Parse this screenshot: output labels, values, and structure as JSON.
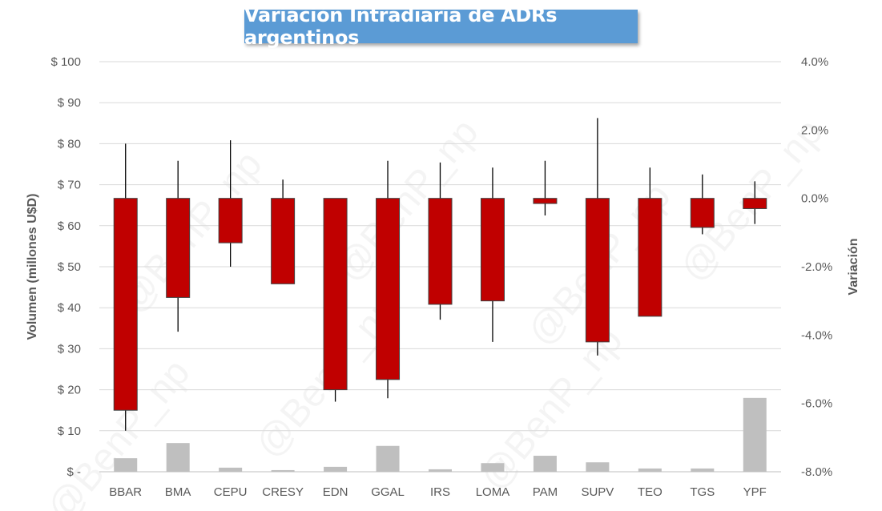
{
  "chart_data": {
    "type": "candlestick_with_volume_bars",
    "title": "Variación Intradiaria de ADRs argentinos",
    "ylabel_left": "Volumen (millones U$D)",
    "ylabel_right": "Variación",
    "ylim_left": [
      0,
      100
    ],
    "ylim_right": [
      -8.0,
      4.0
    ],
    "left_ticks": [
      0,
      10,
      20,
      30,
      40,
      50,
      60,
      70,
      80,
      90,
      100
    ],
    "left_tick_labels": [
      "$ -",
      "$ 10",
      "$ 20",
      "$ 30",
      "$ 40",
      "$ 50",
      "$ 60",
      "$ 70",
      "$ 80",
      "$ 90",
      "$ 100"
    ],
    "right_ticks": [
      -8,
      -6,
      -4,
      -2,
      0,
      2,
      4
    ],
    "right_tick_labels": [
      "-8.0%",
      "-6.0%",
      "-4.0%",
      "-2.0%",
      "0.0%",
      "2.0%",
      "4.0%"
    ],
    "categories": [
      "BBAR",
      "BMA",
      "CEPU",
      "CRESY",
      "EDN",
      "GGAL",
      "IRS",
      "LOMA",
      "PAM",
      "SUPV",
      "TEO",
      "TGS",
      "YPF"
    ],
    "volume": [
      3.3,
      7.0,
      1.0,
      0.4,
      1.2,
      6.3,
      0.6,
      2.1,
      3.9,
      2.3,
      0.8,
      0.8,
      18.0
    ],
    "open": [
      0,
      0,
      0,
      0,
      0,
      0,
      0,
      0,
      0,
      0,
      0,
      0,
      0
    ],
    "close": [
      -6.2,
      -2.9,
      -1.3,
      -2.5,
      -5.6,
      -5.3,
      -3.1,
      -3.0,
      -0.15,
      -4.2,
      -3.45,
      -0.85,
      -0.3
    ],
    "high": [
      1.6,
      1.1,
      1.7,
      0.55,
      0,
      1.1,
      1.05,
      0.9,
      1.1,
      2.35,
      0.9,
      0.7,
      0.5
    ],
    "low": [
      -6.8,
      -3.9,
      -2.0,
      -2.5,
      -5.95,
      -5.85,
      -3.55,
      -4.2,
      -0.5,
      -4.6,
      -3.45,
      -1.05,
      -0.75
    ],
    "volume_color": "#bfbfbf",
    "candle_color": "#c00000",
    "watermark": "@BenP_np"
  }
}
